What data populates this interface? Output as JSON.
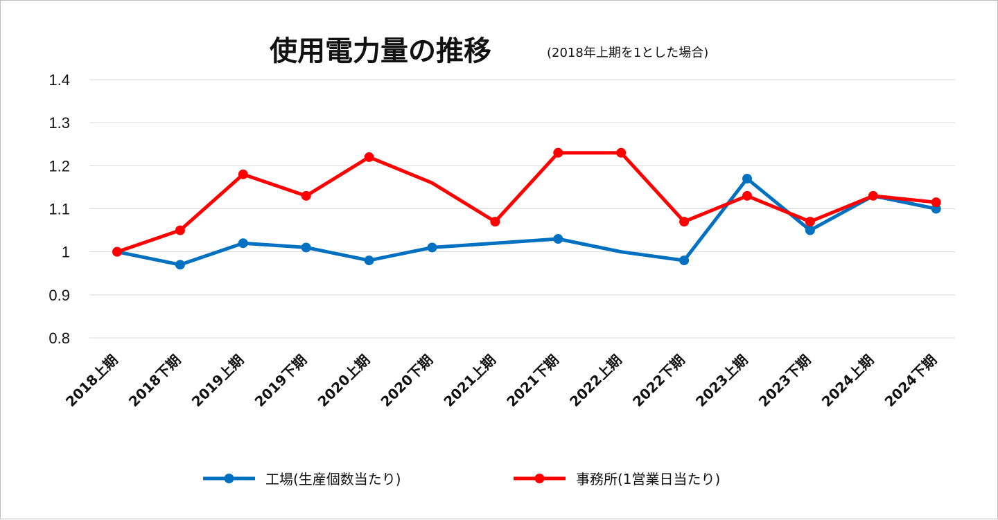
{
  "chart_data": {
    "type": "line",
    "title": "使用電力量の推移",
    "subtitle": "(2018年上期を1とした場合)",
    "xlabel": "",
    "ylabel": "",
    "ylim": [
      0.8,
      1.4
    ],
    "yticks": [
      "1.4",
      "1.3",
      "1.2",
      "1.1",
      "1",
      "0.9",
      "0.8"
    ],
    "ytick_values": [
      1.4,
      1.3,
      1.2,
      1.1,
      1.0,
      0.9,
      0.8
    ],
    "grid": true,
    "legend_position": "bottom",
    "categories": [
      "2018上期",
      "2018下期",
      "2019上期",
      "2019下期",
      "2020上期",
      "2020下期",
      "2021上期",
      "2021下期",
      "2022上期",
      "2022下期",
      "2023上期",
      "2023下期",
      "2024上期",
      "2024下期"
    ],
    "series": [
      {
        "name": "工場(生産個数当たり)",
        "color": "#0070c0",
        "values": [
          1.0,
          0.97,
          1.02,
          1.01,
          0.98,
          1.01,
          1.02,
          1.03,
          1.0,
          0.98,
          1.17,
          1.05,
          1.13,
          1.1
        ],
        "markers": [
          true,
          true,
          true,
          true,
          true,
          true,
          false,
          true,
          false,
          true,
          true,
          true,
          false,
          true
        ]
      },
      {
        "name": "事務所(1営業日当たり)",
        "color": "#ff0000",
        "values": [
          1.0,
          1.05,
          1.18,
          1.13,
          1.22,
          1.16,
          1.07,
          1.23,
          1.23,
          1.07,
          1.13,
          1.07,
          1.13,
          1.115
        ],
        "markers": [
          true,
          true,
          true,
          true,
          true,
          false,
          true,
          true,
          true,
          true,
          true,
          true,
          true,
          true
        ]
      }
    ]
  }
}
